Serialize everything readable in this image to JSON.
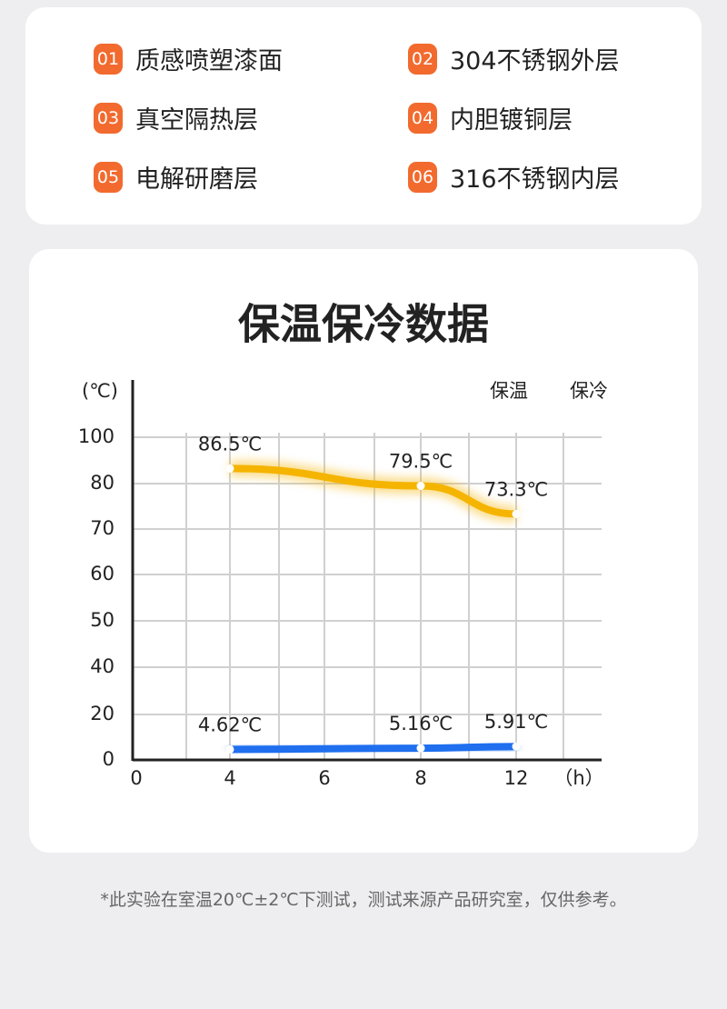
{
  "features": [
    {
      "number": "01",
      "text": "质感喷塑漆面"
    },
    {
      "number": "02",
      "text": "304不锈钢外层"
    },
    {
      "number": "03",
      "text": "真空隔热层"
    },
    {
      "number": "04",
      "text": "内胆镀铜层"
    },
    {
      "number": "05",
      "text": "电解研磨层"
    },
    {
      "number": "06",
      "text": "316不锈钢内层"
    }
  ],
  "chart_data": {
    "type": "line",
    "title": "保温保冷数据",
    "y_label": "(℃)",
    "x_label": "（h）",
    "x": [
      4,
      8,
      12
    ],
    "xticks": [
      0,
      4,
      6,
      8,
      12
    ],
    "yticks": [
      0,
      20,
      40,
      50,
      60,
      70,
      80,
      100
    ],
    "grid": true,
    "legend_position": "top-right",
    "series": [
      {
        "name": "保温",
        "color": "#f5b400",
        "values": [
          86.5,
          79.5,
          73.3
        ],
        "value_labels": [
          "86.5℃",
          "79.5℃",
          "73.3℃"
        ]
      },
      {
        "name": "保冷",
        "color": "#1f6fef",
        "values": [
          4.62,
          5.16,
          5.91
        ],
        "value_labels": [
          "4.62℃",
          "5.16℃",
          "5.91℃"
        ]
      }
    ]
  },
  "footnote": "*此实验在室温20℃±2℃下测试，测试来源产品研究室，仅供参考。"
}
